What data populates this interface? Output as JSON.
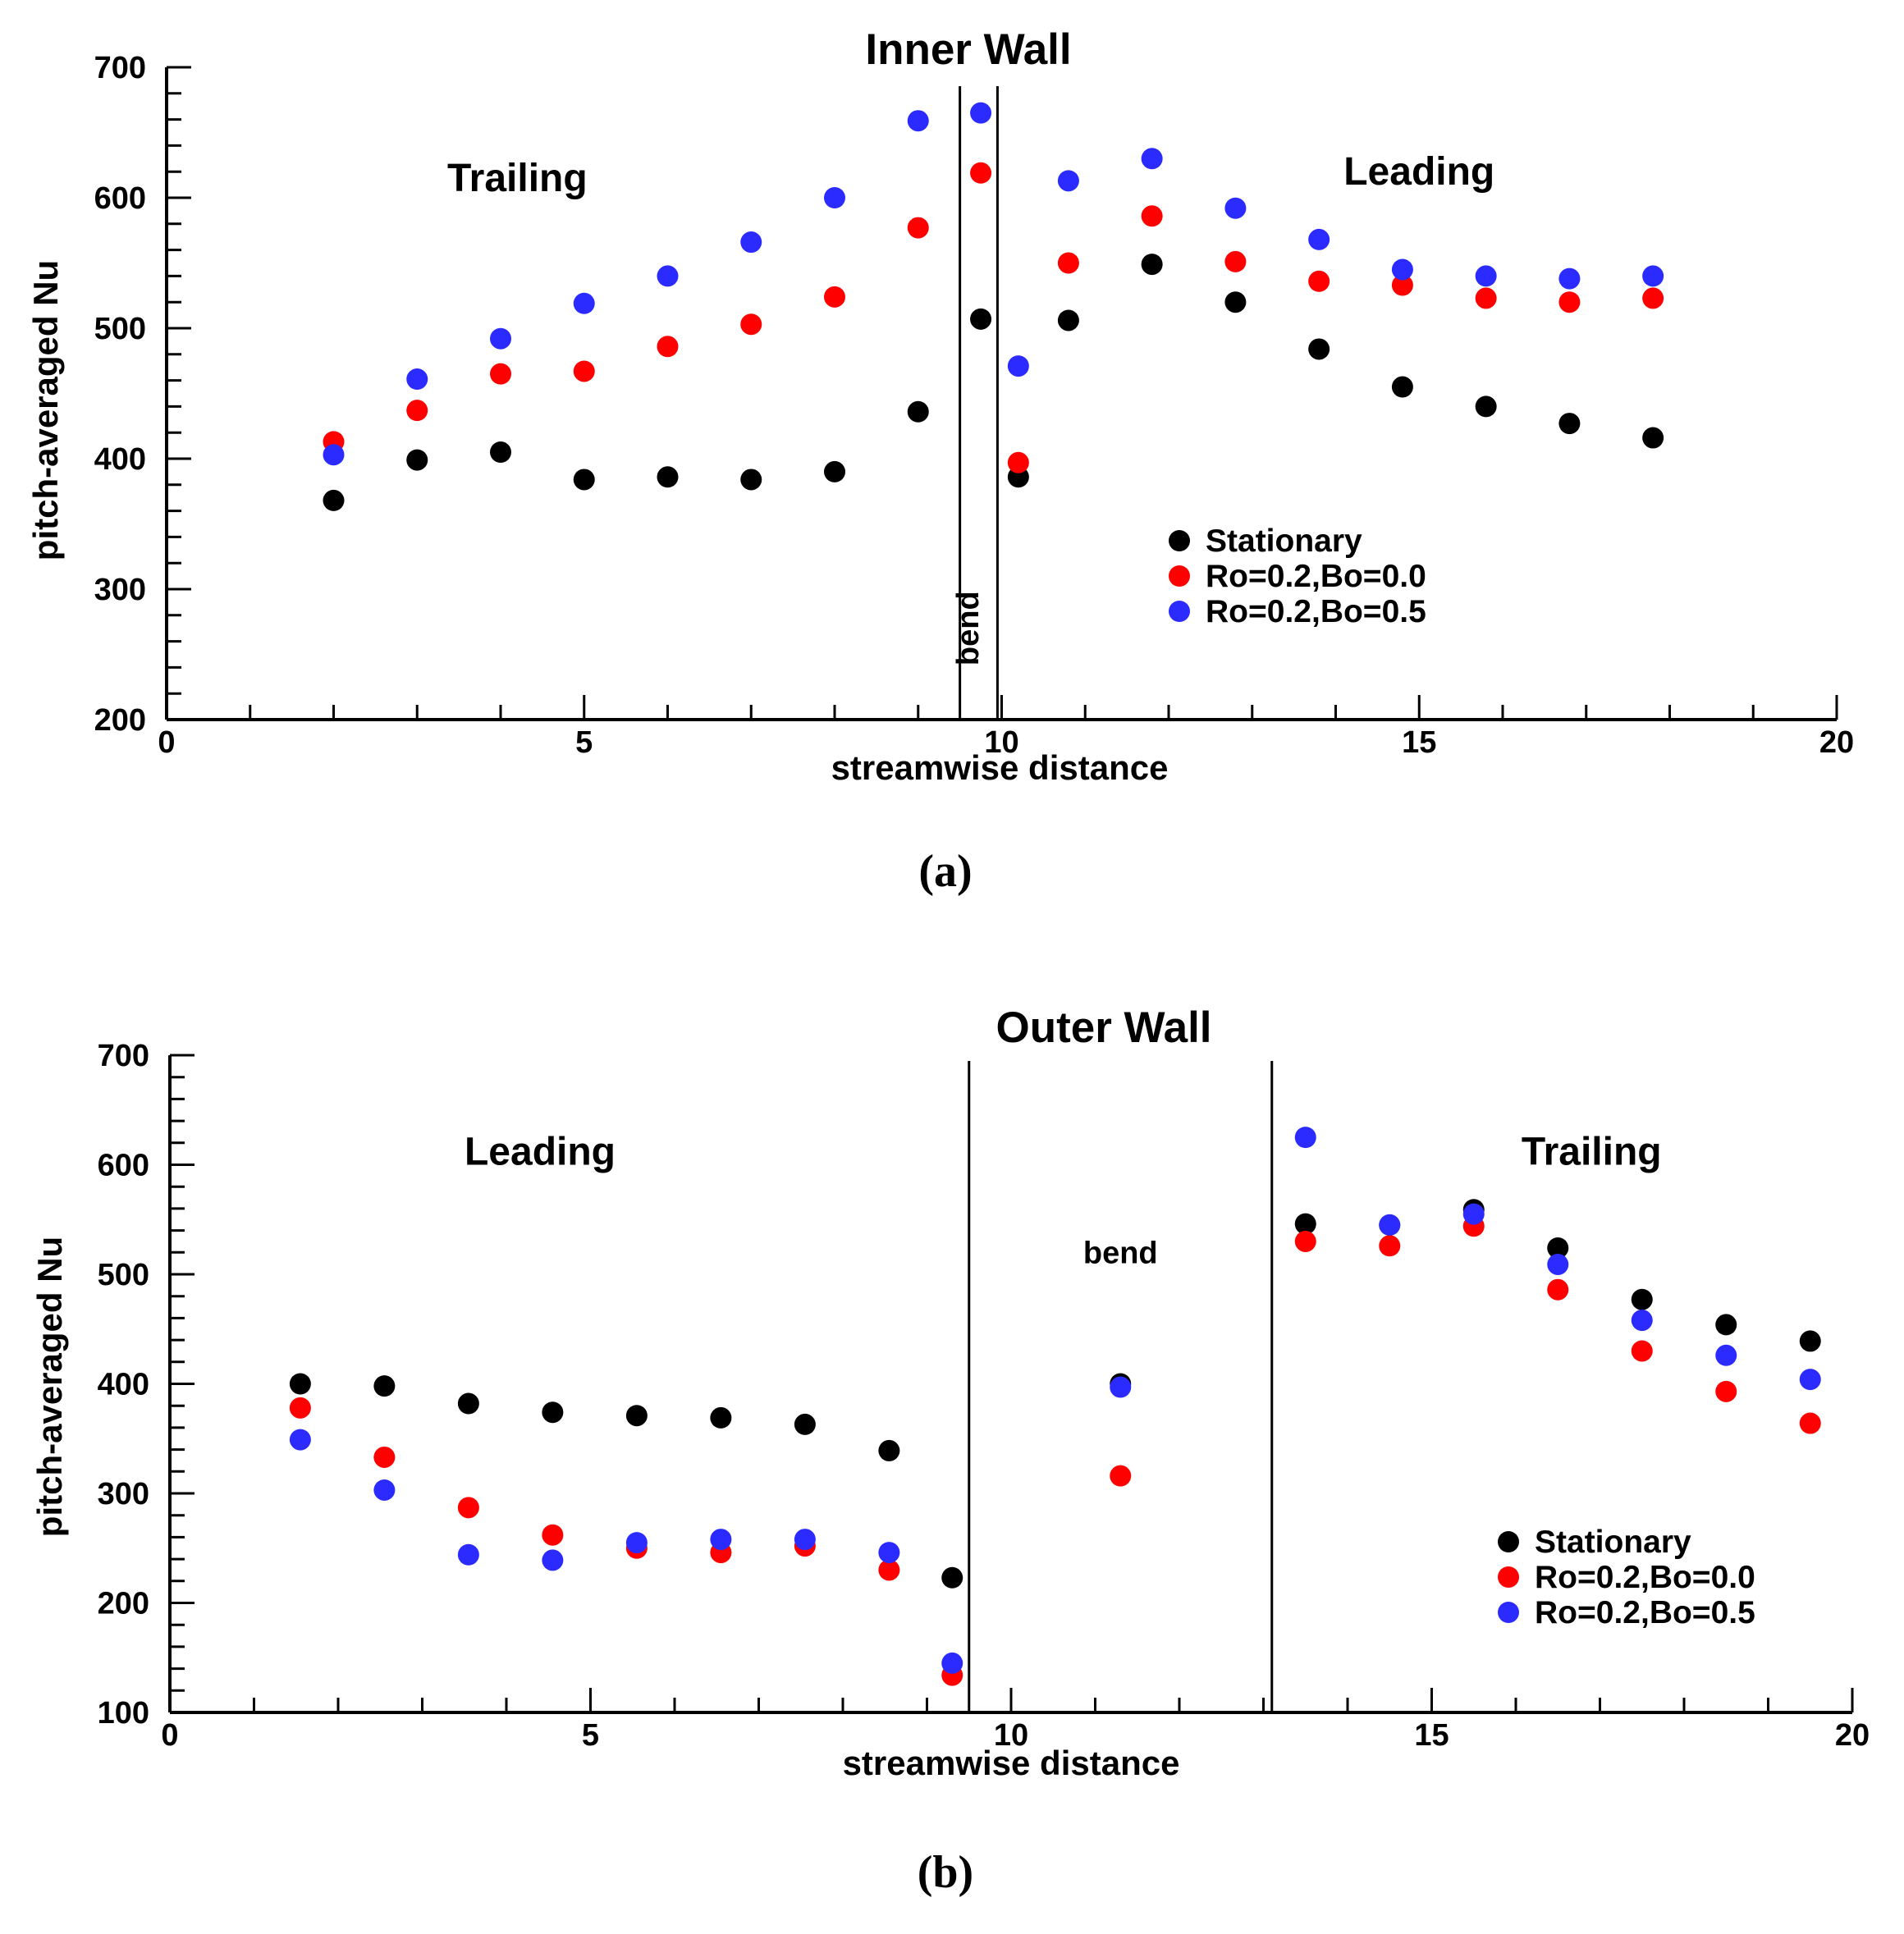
{
  "colors": {
    "Stationary": "#000000",
    "Ro=0.2,Bo=0.0": "#ff0000",
    "Ro=0.2,Bo=0.5": "#2b2bff"
  },
  "chart_data": [
    {
      "type": "scatter",
      "title": "Inner Wall",
      "xlabel": "streamwise distance",
      "ylabel": "pitch-averaged Nu",
      "xlim": [
        0,
        20
      ],
      "ylim": [
        200,
        700
      ],
      "xticks": [
        0,
        5,
        10,
        15,
        20
      ],
      "yticks": [
        200,
        300,
        400,
        500,
        600,
        700
      ],
      "caption": "(a)",
      "regions": [
        {
          "label": "Trailing",
          "x": 4.2,
          "y": 605
        },
        {
          "label": "Leading",
          "x": 15.0,
          "y": 610
        }
      ],
      "bend": {
        "label": "bend",
        "x_start": 9.5,
        "x_end": 9.95,
        "label_x": 9.72,
        "label_y": 270
      },
      "legend": {
        "position": "lower-right",
        "entries": [
          "Stationary",
          "Ro=0.2,Bo=0.0",
          "Ro=0.2,Bo=0.5"
        ]
      },
      "series": [
        {
          "name": "Stationary",
          "x": [
            2.0,
            3.0,
            4.0,
            5.0,
            6.0,
            7.0,
            8.0,
            9.0,
            9.75,
            10.2,
            10.8,
            11.8,
            12.8,
            13.8,
            14.8,
            15.8,
            16.8,
            17.8
          ],
          "y": [
            368,
            399,
            405,
            384,
            386,
            384,
            390,
            436,
            507,
            386,
            506,
            549,
            520,
            484,
            455,
            440,
            427,
            416
          ]
        },
        {
          "name": "Ro=0.2,Bo=0.0",
          "x": [
            2.0,
            3.0,
            4.0,
            5.0,
            6.0,
            7.0,
            8.0,
            9.0,
            9.75,
            10.2,
            10.8,
            11.8,
            12.8,
            13.8,
            14.8,
            15.8,
            16.8,
            17.8
          ],
          "y": [
            413,
            437,
            465,
            467,
            486,
            503,
            524,
            577,
            619,
            397,
            550,
            586,
            551,
            536,
            533,
            523,
            520,
            523
          ]
        },
        {
          "name": "Ro=0.2,Bo=0.5",
          "x": [
            2.0,
            3.0,
            4.0,
            5.0,
            6.0,
            7.0,
            8.0,
            9.0,
            9.75,
            10.2,
            10.8,
            11.8,
            12.8,
            13.8,
            14.8,
            15.8,
            16.8,
            17.8
          ],
          "y": [
            403,
            461,
            492,
            519,
            540,
            566,
            600,
            659,
            665,
            471,
            613,
            630,
            592,
            568,
            545,
            540,
            538,
            540
          ]
        }
      ]
    },
    {
      "type": "scatter",
      "title": "Outer Wall",
      "xlabel": "streamwise distance",
      "ylabel": "pitch-averaged Nu",
      "xlim": [
        0,
        20
      ],
      "ylim": [
        100,
        700
      ],
      "xticks": [
        0,
        5,
        10,
        15,
        20
      ],
      "yticks": [
        100,
        200,
        300,
        400,
        500,
        600,
        700
      ],
      "caption": "(b)",
      "regions": [
        {
          "label": "Leading",
          "x": 4.4,
          "y": 600
        },
        {
          "label": "Trailing",
          "x": 16.9,
          "y": 600
        }
      ],
      "bend": {
        "label": "bend",
        "x_start": 9.5,
        "x_end": 13.1,
        "label_x": 11.3,
        "label_y": 510
      },
      "legend": {
        "position": "lower-right",
        "entries": [
          "Stationary",
          "Ro=0.2,Bo=0.0",
          "Ro=0.2,Bo=0.5"
        ]
      },
      "series": [
        {
          "name": "Stationary",
          "x": [
            1.55,
            2.55,
            3.55,
            4.55,
            5.55,
            6.55,
            7.55,
            8.55,
            9.3,
            11.3,
            13.5,
            14.5,
            15.5,
            16.5,
            17.5,
            18.5,
            19.5
          ],
          "y": [
            400,
            398,
            382,
            374,
            371,
            369,
            363,
            339,
            223,
            400,
            546,
            545,
            559,
            524,
            477,
            454,
            439
          ]
        },
        {
          "name": "Ro=0.2,Bo=0.0",
          "x": [
            1.55,
            2.55,
            3.55,
            4.55,
            5.55,
            6.55,
            7.55,
            8.55,
            9.3,
            11.3,
            13.5,
            14.5,
            15.5,
            16.5,
            17.5,
            18.5,
            19.5
          ],
          "y": [
            378,
            333,
            287,
            262,
            250,
            246,
            252,
            230,
            134,
            316,
            530,
            526,
            544,
            486,
            430,
            393,
            364
          ]
        },
        {
          "name": "Ro=0.2,Bo=0.5",
          "x": [
            1.55,
            2.55,
            3.55,
            4.55,
            5.55,
            6.55,
            7.55,
            8.55,
            9.3,
            11.3,
            13.5,
            14.5,
            15.5,
            16.5,
            17.5,
            18.5,
            19.5
          ],
          "y": [
            349,
            303,
            244,
            239,
            255,
            258,
            258,
            246,
            145,
            397,
            625,
            545,
            555,
            509,
            458,
            426,
            404
          ]
        }
      ]
    }
  ]
}
